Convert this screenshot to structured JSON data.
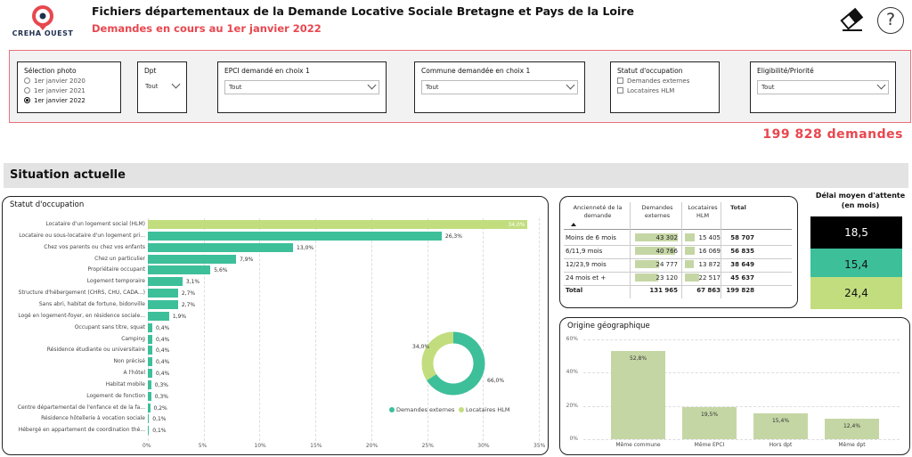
{
  "header": {
    "logo_name": "CREHA OUEST",
    "title": "Fichiers départementaux de la Demande Locative Sociale Bretagne et Pays de la Loire",
    "subtitle": "Demandes en cours au 1er janvier 2022",
    "eraser_icon": "eraser-icon",
    "help_icon": "help-icon",
    "help_glyph": "?"
  },
  "filters": {
    "selection_photo": {
      "label": "Sélection photo",
      "options": [
        "1er janvier 2020",
        "1er janvier 2021",
        "1er janvier 2022"
      ],
      "selected_index": 2
    },
    "dpt": {
      "label": "Dpt",
      "value": "Tout"
    },
    "epci": {
      "label": "EPCI demandé en choix 1",
      "value": "Tout"
    },
    "commune": {
      "label": "Commune demandée en choix 1",
      "value": "Tout"
    },
    "statut": {
      "label": "Statut d'occupation",
      "options": [
        "Demandes externes",
        "Locataires HLM"
      ]
    },
    "eligibilite": {
      "label": "Eligibilité/Priorité",
      "value": "Tout"
    }
  },
  "total_demandes": "199 828 demandes",
  "section_title": "Situation actuelle",
  "colors": {
    "green": "#3dbf9a",
    "light_green": "#c2dd7e",
    "table_bar": "#c5d6a5",
    "accent_red": "#e8474f",
    "black": "#000000"
  },
  "statut_chart": {
    "title": "Statut d'occupation",
    "legend": [
      "Demandes externes",
      "Locataires HLM"
    ]
  },
  "chart_data": [
    {
      "type": "bar",
      "orientation": "horizontal",
      "title": "Statut d'occupation",
      "categories": [
        "Locataire d'un logement social (HLM)",
        "Locataire ou sous-locataire d'un logement pri...",
        "Chez vos parents ou chez vos enfants",
        "Chez un particulier",
        "Propriétaire occupant",
        "Logement temporaire",
        "Structure d'hébergement (CHRS, CHU, CADA...)",
        "Sans abri, habitat de fortune, bidonville",
        "Logé en logement-foyer, en résidence sociale...",
        "Occupant sans titre, squat",
        "Camping",
        "Résidence étudiante ou universitaire",
        "Non précisé",
        "A l'hôtel",
        "Habitat mobile",
        "Logement de fonction",
        "Centre départemental de l'enfance et de la fa...",
        "Résidence hôtellerie à vocation sociale",
        "Hébergé en appartement de coordination thé..."
      ],
      "values": [
        34.0,
        26.3,
        13.0,
        7.9,
        5.6,
        3.1,
        2.7,
        2.7,
        1.9,
        0.4,
        0.4,
        0.4,
        0.4,
        0.4,
        0.3,
        0.3,
        0.2,
        0.1,
        0.1
      ],
      "value_labels": [
        "34,0%",
        "26,3%",
        "13,0%",
        "7,9%",
        "5,6%",
        "3,1%",
        "2,7%",
        "2,7%",
        "1,9%",
        "0,4%",
        "0,4%",
        "0,4%",
        "0,4%",
        "0,4%",
        "0,3%",
        "0,3%",
        "0,2%",
        "0,1%",
        "0,1%"
      ],
      "series_of_first": "Locataires HLM",
      "xticks": [
        "0%",
        "5%",
        "10%",
        "15%",
        "20%",
        "25%",
        "30%",
        "35%"
      ],
      "xlim": [
        0,
        35
      ]
    },
    {
      "type": "pie",
      "donut": true,
      "labels": [
        "Demandes externes",
        "Locataires HLM"
      ],
      "values": [
        66.0,
        34.0
      ],
      "value_labels": [
        "66,0%",
        "34,0%"
      ]
    },
    {
      "type": "bar",
      "title": "Origine géographique",
      "categories": [
        "Même commune",
        "Même EPCI",
        "Hors dpt",
        "Même dpt"
      ],
      "values": [
        52.8,
        19.5,
        15.4,
        12.4
      ],
      "value_labels": [
        "52,8%",
        "19,5%",
        "15,4%",
        "12,4%"
      ],
      "yticks": [
        "0%",
        "20%",
        "40%",
        "60%"
      ],
      "ylim": [
        0,
        60
      ]
    }
  ],
  "anciennete_table": {
    "headers": [
      "Ancienneté de la demande",
      "Demandes externes",
      "Locataires HLM",
      "Total"
    ],
    "rows": [
      {
        "label": "Moins de 6 mois",
        "ext": "43 302",
        "hlm": "15 405",
        "total": "58 707",
        "ext_v": 43302,
        "hlm_v": 15405
      },
      {
        "label": "6/11,9 mois",
        "ext": "40 766",
        "hlm": "16 069",
        "total": "56 835",
        "ext_v": 40766,
        "hlm_v": 16069
      },
      {
        "label": "12/23,9 mois",
        "ext": "24 777",
        "hlm": "13 872",
        "total": "38 649",
        "ext_v": 24777,
        "hlm_v": 13872
      },
      {
        "label": "24 mois et +",
        "ext": "23 120",
        "hlm": "22 517",
        "total": "45 637",
        "ext_v": 23120,
        "hlm_v": 22517
      }
    ],
    "total_row": {
      "label": "Total",
      "ext": "131 965",
      "hlm": "67 863",
      "total": "199 828"
    }
  },
  "delai": {
    "title": "Délai moyen d'attente (en mois)",
    "values": [
      "18,5",
      "15,4",
      "24,4"
    ]
  },
  "origine": {
    "title": "Origine géographique"
  }
}
